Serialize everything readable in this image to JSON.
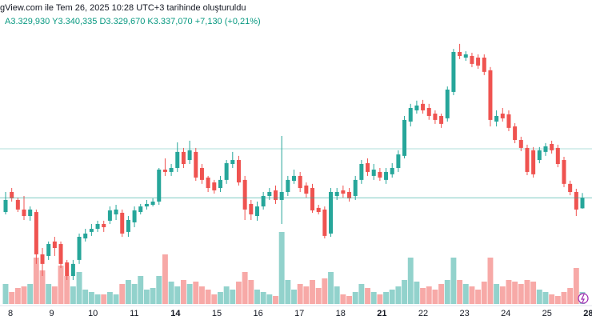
{
  "chart_data": {
    "type": "candlestick",
    "title": "gView.com ile Tem 26, 2025 10:28 UTC+3 tarihinde oluşturuldu",
    "subtitle": "A3.329,930 Y3.340,335 D3.329,670 K3.337,070 +7,130 (+0,21%)",
    "up_color": "#26a69a",
    "down_color": "#ef5350",
    "ylim": [
      3265,
      3455
    ],
    "vlim": [
      0,
      100
    ],
    "price_lines": [
      3370.3
    ],
    "x_labels": [
      "8",
      "9",
      "10",
      "11",
      "14",
      "15",
      "16",
      "17",
      "18",
      "21",
      "22",
      "23",
      "24",
      "25",
      "28"
    ],
    "ohlc": [
      [
        3327.4,
        3341.0,
        3325.8,
        3335.6
      ],
      [
        3341.0,
        3343.7,
        3334.5,
        3336.7
      ],
      [
        3335.6,
        3337.2,
        3327.4,
        3329.1
      ],
      [
        3329.1,
        3338.3,
        3322.0,
        3324.7
      ],
      [
        3324.7,
        3331.2,
        3321.5,
        3329.1
      ],
      [
        3327.4,
        3329.1,
        3292.2,
        3298.7
      ],
      [
        3298.7,
        3303.0,
        3284.0,
        3292.2
      ],
      [
        3297.6,
        3307.4,
        3294.9,
        3305.7
      ],
      [
        3307.4,
        3310.6,
        3297.6,
        3303.0
      ],
      [
        3305.7,
        3307.4,
        3289.4,
        3292.2
      ],
      [
        3293.2,
        3294.9,
        3281.3,
        3284.0
      ],
      [
        3284.0,
        3294.9,
        3281.3,
        3292.2
      ],
      [
        3294.9,
        3312.8,
        3292.2,
        3310.6
      ],
      [
        3309.5,
        3316.0,
        3307.4,
        3312.8
      ],
      [
        3313.9,
        3319.3,
        3311.2,
        3316.0
      ],
      [
        3316.0,
        3321.5,
        3313.9,
        3319.3
      ],
      [
        3319.3,
        3321.5,
        3313.9,
        3317.1
      ],
      [
        3321.5,
        3331.2,
        3319.3,
        3328.5
      ],
      [
        3325.8,
        3332.3,
        3322.0,
        3329.1
      ],
      [
        3326.9,
        3329.1,
        3310.6,
        3312.8
      ],
      [
        3313.9,
        3324.7,
        3310.6,
        3322.0
      ],
      [
        3320.4,
        3331.2,
        3317.1,
        3328.5
      ],
      [
        3327.4,
        3332.9,
        3325.8,
        3331.2
      ],
      [
        3331.2,
        3335.6,
        3329.1,
        3332.9
      ],
      [
        3332.3,
        3336.7,
        3331.2,
        3334.5
      ],
      [
        3334.5,
        3357.3,
        3332.3,
        3356.2
      ],
      [
        3356.2,
        3363.8,
        3351.9,
        3354.6
      ],
      [
        3354.6,
        3360.0,
        3351.9,
        3357.3
      ],
      [
        3357.3,
        3374.7,
        3354.6,
        3368.2
      ],
      [
        3368.2,
        3370.9,
        3357.3,
        3360.0
      ],
      [
        3362.7,
        3375.8,
        3360.0,
        3369.3
      ],
      [
        3368.2,
        3370.9,
        3348.6,
        3350.8
      ],
      [
        3357.3,
        3360.0,
        3346.5,
        3349.2
      ],
      [
        3350.8,
        3351.9,
        3341.0,
        3343.7
      ],
      [
        3347.5,
        3349.2,
        3339.9,
        3342.1
      ],
      [
        3343.7,
        3351.9,
        3341.0,
        3349.2
      ],
      [
        3349.2,
        3362.7,
        3346.5,
        3360.6
      ],
      [
        3360.0,
        3368.2,
        3357.3,
        3362.7
      ],
      [
        3362.7,
        3365.5,
        3345.4,
        3347.5
      ],
      [
        3349.2,
        3351.9,
        3322.0,
        3329.1
      ],
      [
        3332.9,
        3335.6,
        3322.0,
        3325.8
      ],
      [
        3324.7,
        3334.5,
        3321.5,
        3331.2
      ],
      [
        3331.2,
        3341.0,
        3329.1,
        3338.3
      ],
      [
        3338.3,
        3343.7,
        3335.6,
        3341.0
      ],
      [
        3342.1,
        3345.4,
        3332.9,
        3335.6
      ],
      [
        3335.6,
        3379.0,
        3319.3,
        3341.0
      ],
      [
        3341.0,
        3351.9,
        3338.3,
        3349.2
      ],
      [
        3348.6,
        3356.2,
        3346.5,
        3351.9
      ],
      [
        3351.9,
        3354.6,
        3341.0,
        3343.7
      ],
      [
        3345.4,
        3347.5,
        3337.2,
        3339.9
      ],
      [
        3343.7,
        3346.5,
        3326.9,
        3328.5
      ],
      [
        3330.2,
        3332.3,
        3325.8,
        3327.4
      ],
      [
        3329.1,
        3331.2,
        3309.5,
        3311.2
      ],
      [
        3312.8,
        3343.7,
        3310.6,
        3341.0
      ],
      [
        3338.3,
        3343.7,
        3335.6,
        3341.0
      ],
      [
        3342.1,
        3345.4,
        3337.2,
        3339.9
      ],
      [
        3341.0,
        3343.7,
        3334.5,
        3336.7
      ],
      [
        3338.3,
        3351.9,
        3335.6,
        3349.2
      ],
      [
        3349.2,
        3362.7,
        3346.5,
        3360.0
      ],
      [
        3360.6,
        3363.8,
        3351.9,
        3354.6
      ],
      [
        3351.9,
        3360.0,
        3349.2,
        3356.2
      ],
      [
        3354.6,
        3357.3,
        3348.6,
        3350.8
      ],
      [
        3349.2,
        3357.3,
        3346.5,
        3354.6
      ],
      [
        3353.0,
        3360.6,
        3350.8,
        3357.3
      ],
      [
        3357.3,
        3369.3,
        3354.6,
        3366.5
      ],
      [
        3365.5,
        3392.6,
        3363.8,
        3389.9
      ],
      [
        3388.8,
        3400.8,
        3385.5,
        3398.0
      ],
      [
        3396.4,
        3403.0,
        3394.2,
        3399.7
      ],
      [
        3400.8,
        3403.5,
        3394.2,
        3396.4
      ],
      [
        3398.0,
        3400.8,
        3390.0,
        3392.6
      ],
      [
        3394.2,
        3396.4,
        3387.2,
        3389.9
      ],
      [
        3392.6,
        3394.2,
        3384.5,
        3387.2
      ],
      [
        3391.0,
        3412.6,
        3388.8,
        3410.5
      ],
      [
        3408.9,
        3438.1,
        3406.7,
        3436.0
      ],
      [
        3436.0,
        3441.5,
        3431.2,
        3433.3
      ],
      [
        3432.2,
        3436.5,
        3430.0,
        3434.4
      ],
      [
        3433.3,
        3435.5,
        3425.7,
        3427.9
      ],
      [
        3432.2,
        3434.4,
        3424.6,
        3426.8
      ],
      [
        3432.2,
        3434.4,
        3420.3,
        3422.5
      ],
      [
        3423.6,
        3425.8,
        3385.5,
        3389.9
      ],
      [
        3388.8,
        3396.4,
        3385.5,
        3392.6
      ],
      [
        3394.2,
        3398.0,
        3388.8,
        3391.0
      ],
      [
        3393.7,
        3396.4,
        3382.3,
        3384.5
      ],
      [
        3385.5,
        3387.7,
        3374.1,
        3376.3
      ],
      [
        3376.3,
        3378.5,
        3368.7,
        3370.9
      ],
      [
        3370.9,
        3373.1,
        3352.4,
        3354.6
      ],
      [
        3369.3,
        3371.5,
        3350.8,
        3353.0
      ],
      [
        3362.7,
        3371.5,
        3360.5,
        3369.3
      ],
      [
        3368.2,
        3374.2,
        3365.5,
        3372.0
      ],
      [
        3373.6,
        3375.8,
        3367.1,
        3369.3
      ],
      [
        3370.9,
        3373.1,
        3357.8,
        3360.0
      ],
      [
        3362.7,
        3364.9,
        3344.3,
        3346.5
      ],
      [
        3346.5,
        3348.7,
        3338.8,
        3341.0
      ],
      [
        3341.0,
        3343.2,
        3324.7,
        3329.1
      ],
      [
        3329.93,
        3340.335,
        3329.67,
        3337.07
      ]
    ],
    "volume": [
      25,
      15,
      20,
      22,
      25,
      58,
      42,
      25,
      22,
      48,
      35,
      22,
      40,
      18,
      15,
      12,
      12,
      15,
      12,
      25,
      30,
      25,
      35,
      18,
      20,
      35,
      62,
      28,
      22,
      30,
      25,
      28,
      22,
      18,
      12,
      15,
      22,
      18,
      28,
      40,
      30,
      18,
      15,
      12,
      10,
      90,
      30,
      18,
      25,
      22,
      30,
      20,
      32,
      40,
      22,
      12,
      10,
      15,
      25,
      20,
      15,
      12,
      15,
      18,
      22,
      30,
      58,
      28,
      20,
      22,
      18,
      25,
      30,
      58,
      30,
      25,
      22,
      18,
      28,
      58,
      25,
      22,
      30,
      28,
      25,
      30,
      28,
      18,
      15,
      12,
      10,
      15,
      20,
      45,
      15
    ]
  }
}
